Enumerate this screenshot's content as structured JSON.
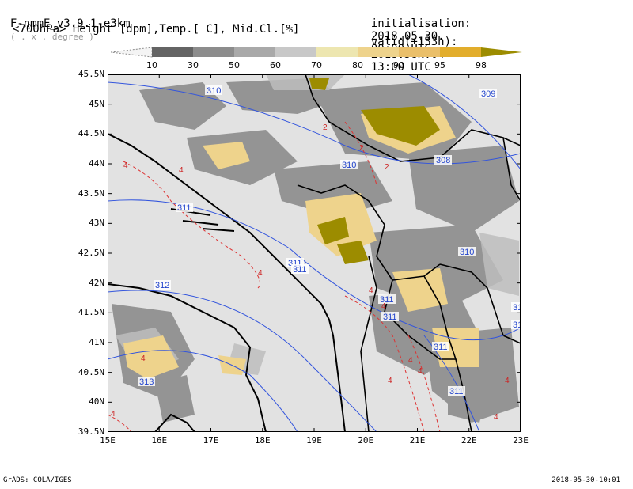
{
  "header": {
    "model": "F-nmmE_v3.9.1-e3km",
    "units_hint": "( . x . degree )",
    "init_label": "initialisation:",
    "init_date": "2018.05.30.",
    "init_time": "00:00 UTC",
    "fields": "<700hPa> Height [dpm],Temp.[ C], Mid.Cl.[%]",
    "valid_label": "valid(+133h):",
    "valid_date": "2018.JUN.04",
    "valid_time": "13:00 UTC"
  },
  "colorbar": {
    "levels": [
      "10",
      "30",
      "50",
      "60",
      "70",
      "80",
      "90",
      "95",
      "98"
    ],
    "colors": [
      "#f4f4f4",
      "#646464",
      "#8c8c8c",
      "#a9a9a9",
      "#c8c8c8",
      "#ede6b0",
      "#eed38c",
      "#eabf6a",
      "#e2ad2c",
      "#9c8c00"
    ]
  },
  "map": {
    "lat_labels": [
      "45.5N",
      "45N",
      "44.5N",
      "44N",
      "43.5N",
      "43N",
      "42.5N",
      "42N",
      "41.5N",
      "41N",
      "40.5N",
      "40N",
      "39.5N"
    ],
    "lon_labels": [
      "15E",
      "16E",
      "17E",
      "18E",
      "19E",
      "20E",
      "21E",
      "22E",
      "23E"
    ],
    "lat_range": [
      39.5,
      45.5
    ],
    "lon_range": [
      15,
      23
    ],
    "height_contour_labels": [
      "310",
      "309",
      "308",
      "310",
      "310",
      "311",
      "311",
      "311",
      "311",
      "311",
      "311",
      "312",
      "313",
      "310",
      "310",
      "311"
    ],
    "temp_contour_labels": [
      "2",
      "2",
      "2",
      "4",
      "4",
      "4",
      "4",
      "4",
      "4",
      "4",
      "4",
      "4",
      "4",
      "4",
      "4"
    ]
  },
  "footer": {
    "left": "GrADS: COLA/IGES",
    "right": "2018-05-30-10:01"
  }
}
